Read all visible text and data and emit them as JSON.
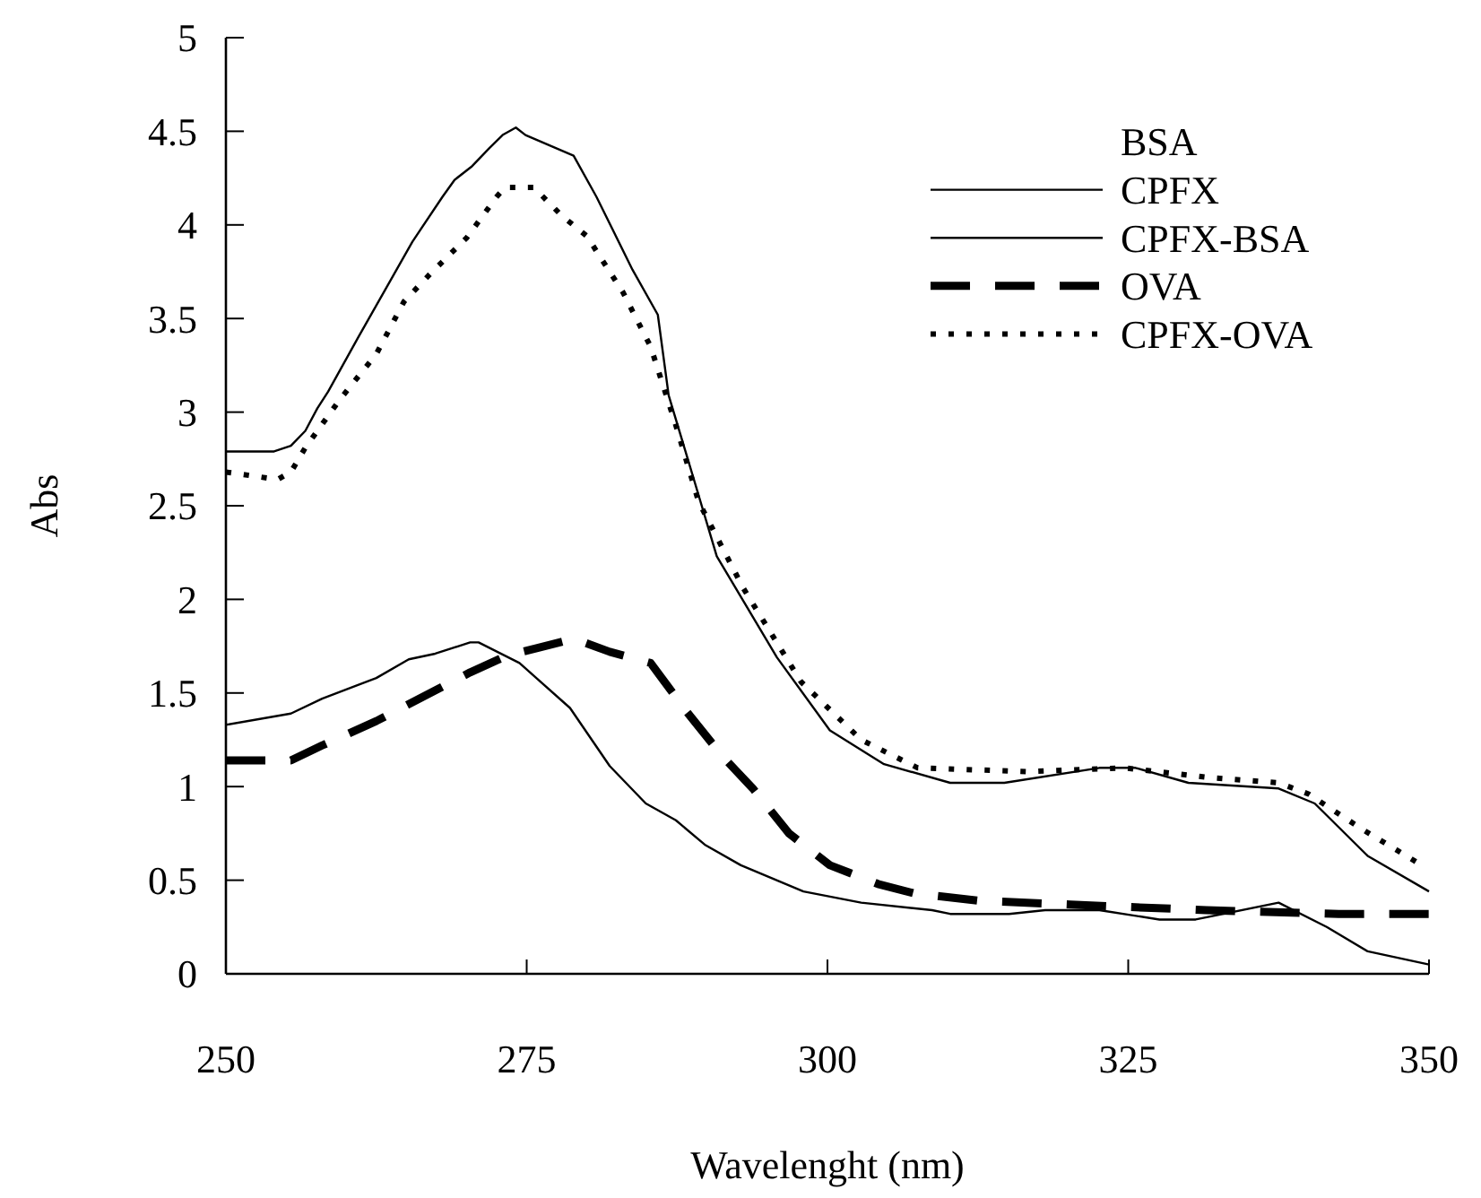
{
  "chart_data": {
    "type": "line",
    "xlabel": "Wavelenght (nm)",
    "ylabel": "Abs",
    "legend_title": "BSA",
    "legend": "top right",
    "grid": false,
    "marker": "none",
    "xlim": [
      250,
      350
    ],
    "xticks": [
      250,
      275,
      300,
      325,
      350
    ],
    "ylim": [
      0,
      5
    ],
    "yticks": [
      0,
      0.5,
      1,
      1.5,
      2,
      2.5,
      3,
      3.5,
      4,
      4.5,
      5
    ],
    "series": [
      {
        "name": "CPFX",
        "color": "#000000",
        "line_style": "solid",
        "x": [
          250,
          255.4,
          258,
          262.5,
          265.2,
          267.4,
          270.3,
          271,
          274.4,
          278.6,
          281.9,
          284.9,
          287.4,
          289.8,
          292.8,
          298,
          302.8,
          308.7,
          310.2,
          315.1,
          318.1,
          322.6,
          327.6,
          330.6,
          337.5,
          341.5,
          344.9,
          350
        ],
        "values": [
          1.33,
          1.39,
          1.47,
          1.58,
          1.68,
          1.71,
          1.77,
          1.77,
          1.66,
          1.42,
          1.11,
          0.91,
          0.82,
          0.69,
          0.58,
          0.44,
          0.38,
          0.34,
          0.32,
          0.32,
          0.34,
          0.34,
          0.29,
          0.29,
          0.38,
          0.25,
          0.12,
          0.05
        ]
      },
      {
        "name": "CPFX-BSA",
        "color": "#000000",
        "line_style": "solid",
        "x": [
          250,
          254,
          255.4,
          256.6,
          257.6,
          258.5,
          261,
          264,
          265.5,
          268,
          269,
          270.4,
          271.9,
          273,
          274.1,
          274.9,
          278.9,
          280.8,
          283.8,
          285.9,
          286.8,
          288.9,
          290.8,
          295.8,
          300.2,
          304.7,
          310.2,
          314.7,
          322.6,
          325.6,
          330,
          337.5,
          340.5,
          344.9,
          350
        ],
        "values": [
          2.79,
          2.79,
          2.82,
          2.9,
          3.02,
          3.11,
          3.4,
          3.74,
          3.91,
          4.15,
          4.24,
          4.31,
          4.41,
          4.48,
          4.52,
          4.48,
          4.37,
          4.15,
          3.76,
          3.52,
          3.09,
          2.64,
          2.23,
          1.69,
          1.3,
          1.12,
          1.02,
          1.02,
          1.1,
          1.1,
          1.02,
          0.99,
          0.91,
          0.63,
          0.44
        ]
      },
      {
        "name": "OVA",
        "color": "#000000",
        "line_style": "dashed",
        "x": [
          250,
          255.4,
          258,
          262.5,
          270.3,
          273.4,
          275.9,
          278.9,
          281.9,
          285.3,
          288.3,
          291.3,
          293.8,
          296.8,
          300.2,
          304.2,
          307.2,
          312.7,
          320.2,
          331.5,
          342.5,
          350
        ],
        "values": [
          1.14,
          1.14,
          1.22,
          1.35,
          1.61,
          1.7,
          1.74,
          1.79,
          1.72,
          1.66,
          1.4,
          1.16,
          0.99,
          0.75,
          0.58,
          0.48,
          0.43,
          0.39,
          0.37,
          0.34,
          0.32,
          0.32
        ]
      },
      {
        "name": "CPFX-OVA",
        "color": "#000000",
        "line_style": "dotted",
        "x": [
          250,
          254.3,
          255.4,
          256.6,
          259.5,
          262.5,
          264.8,
          267,
          270,
          272.5,
          273.2,
          275.6,
          277.9,
          280,
          283,
          285.3,
          287.4,
          289.3,
          293,
          297.8,
          302.8,
          307.5,
          316.6,
          324.7,
          331.5,
          337.5,
          340,
          344.5,
          349.4
        ],
        "values": [
          2.68,
          2.64,
          2.68,
          2.81,
          3.07,
          3.31,
          3.59,
          3.74,
          3.93,
          4.15,
          4.2,
          4.2,
          4.05,
          3.94,
          3.64,
          3.35,
          2.93,
          2.52,
          2.06,
          1.56,
          1.25,
          1.1,
          1.08,
          1.1,
          1.05,
          1.02,
          0.96,
          0.77,
          0.58
        ]
      }
    ]
  }
}
